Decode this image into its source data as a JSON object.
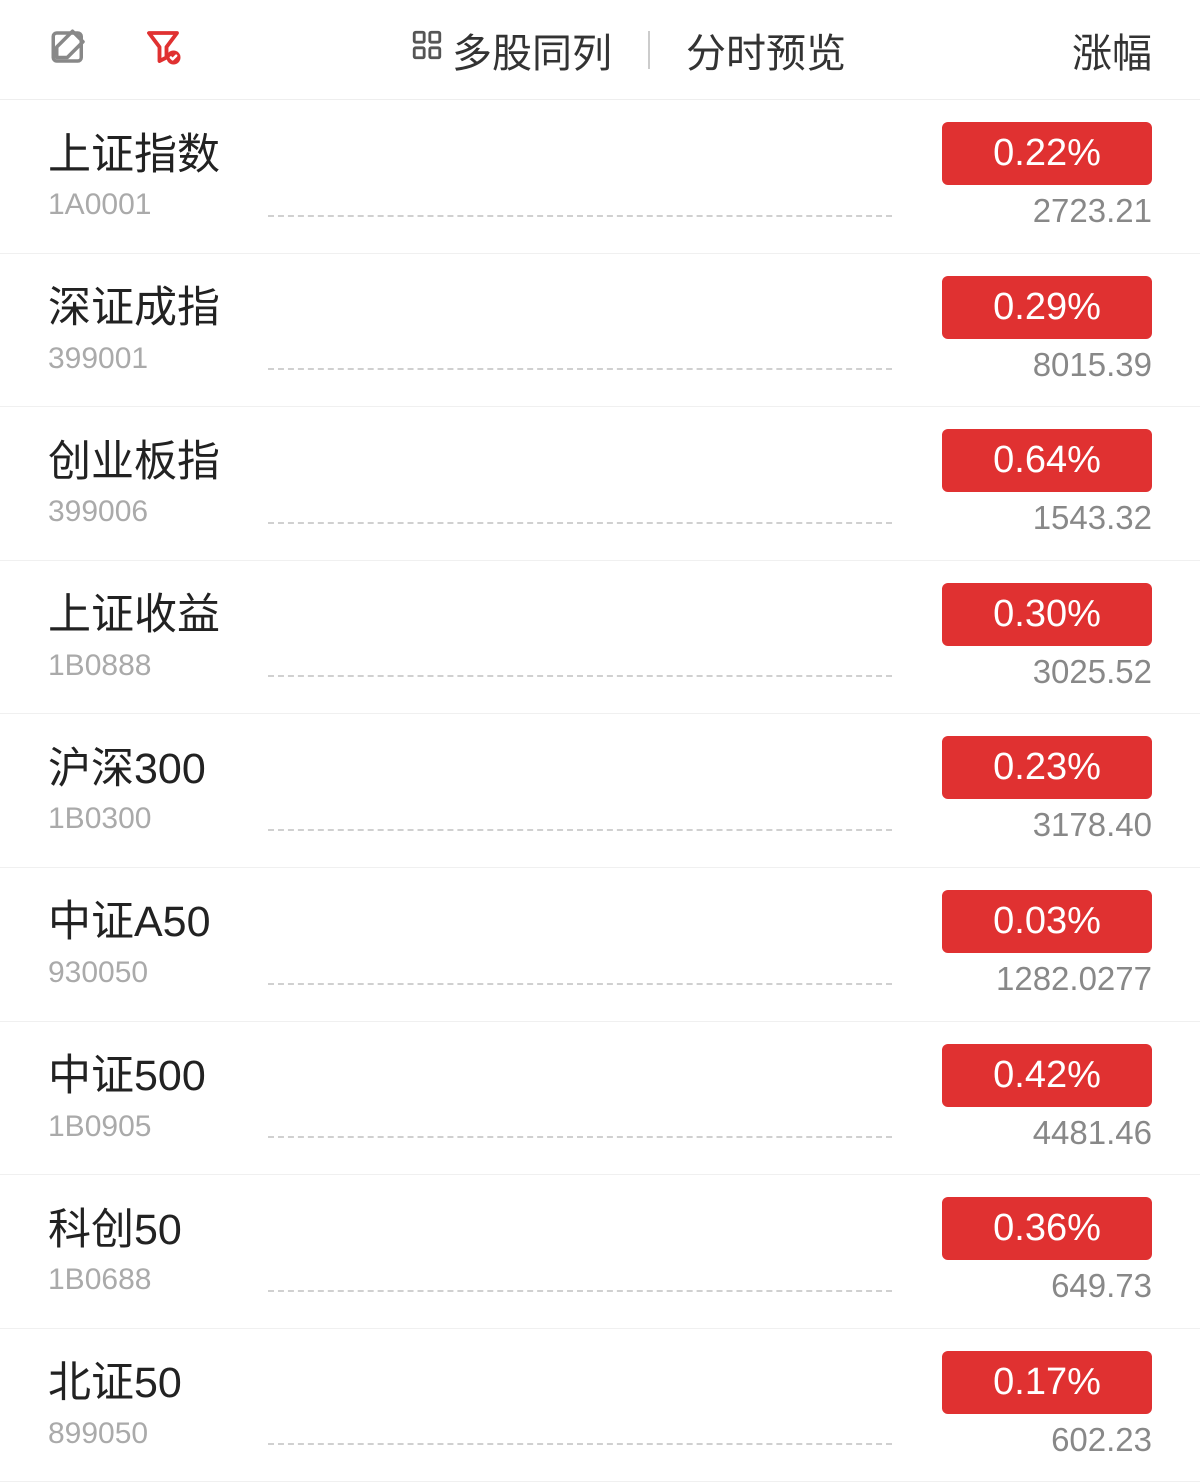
{
  "header": {
    "multi_stock_label": "多股同列",
    "preview_label": "分时预览",
    "sort_label": "涨幅"
  },
  "colors": {
    "badge_background": "#e03131",
    "badge_text": "#ffffff",
    "name_text": "#222222",
    "code_text": "#aaaaaa",
    "value_text": "#888888",
    "filter_icon": "#e03131",
    "edit_icon": "#888888"
  },
  "items": [
    {
      "name": "上证指数",
      "code": "1A0001",
      "change": "0.22%",
      "value": "2723.21"
    },
    {
      "name": "深证成指",
      "code": "399001",
      "change": "0.29%",
      "value": "8015.39"
    },
    {
      "name": "创业板指",
      "code": "399006",
      "change": "0.64%",
      "value": "1543.32"
    },
    {
      "name": "上证收益",
      "code": "1B0888",
      "change": "0.30%",
      "value": "3025.52"
    },
    {
      "name": "沪深300",
      "code": "1B0300",
      "change": "0.23%",
      "value": "3178.40"
    },
    {
      "name": "中证A50",
      "code": "930050",
      "change": "0.03%",
      "value": "1282.0277"
    },
    {
      "name": "中证500",
      "code": "1B0905",
      "change": "0.42%",
      "value": "4481.46"
    },
    {
      "name": "科创50",
      "code": "1B0688",
      "change": "0.36%",
      "value": "649.73"
    },
    {
      "name": "北证50",
      "code": "899050",
      "change": "0.17%",
      "value": "602.23"
    }
  ]
}
